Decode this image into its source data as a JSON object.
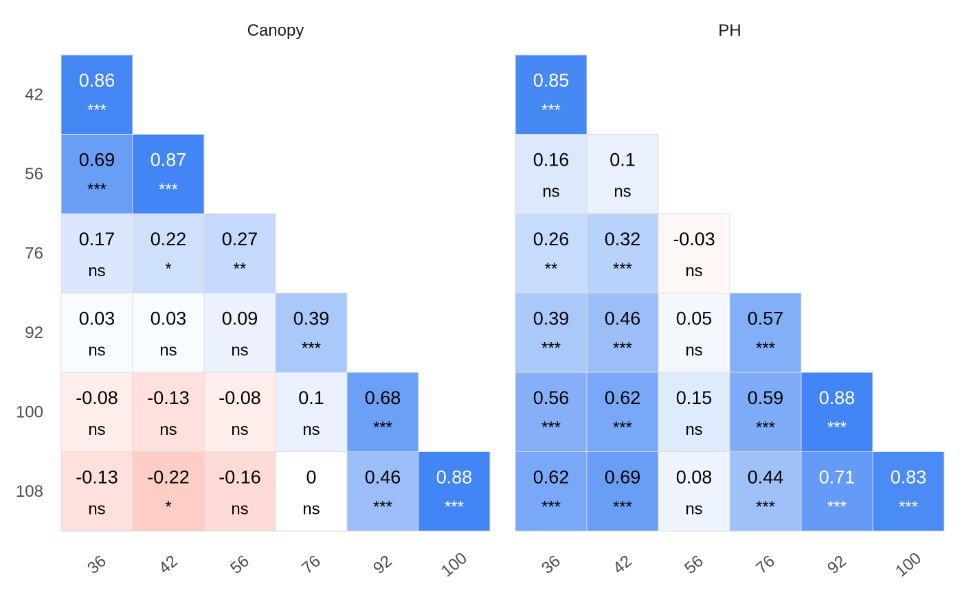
{
  "chart_data": {
    "type": "heatmap",
    "color_scale": {
      "negative": "#fc8d7e",
      "zero": "#ffffff",
      "positive": "#4285f4"
    },
    "x_categories": [
      "36",
      "42",
      "56",
      "76",
      "92",
      "100"
    ],
    "y_categories": [
      "42",
      "56",
      "76",
      "92",
      "100",
      "108"
    ],
    "panels": [
      {
        "title": "Canopy",
        "cells": [
          [
            {
              "v": 0.86,
              "s": "***"
            }
          ],
          [
            {
              "v": 0.69,
              "s": "***"
            },
            {
              "v": 0.87,
              "s": "***"
            }
          ],
          [
            {
              "v": 0.17,
              "s": "ns"
            },
            {
              "v": 0.22,
              "s": "*"
            },
            {
              "v": 0.27,
              "s": "**"
            }
          ],
          [
            {
              "v": 0.03,
              "s": "ns"
            },
            {
              "v": 0.03,
              "s": "ns"
            },
            {
              "v": 0.09,
              "s": "ns"
            },
            {
              "v": 0.39,
              "s": "***"
            }
          ],
          [
            {
              "v": -0.08,
              "s": "ns"
            },
            {
              "v": -0.13,
              "s": "ns"
            },
            {
              "v": -0.08,
              "s": "ns"
            },
            {
              "v": 0.1,
              "s": "ns"
            },
            {
              "v": 0.68,
              "s": "***"
            }
          ],
          [
            {
              "v": -0.13,
              "s": "ns"
            },
            {
              "v": -0.22,
              "s": "*"
            },
            {
              "v": -0.16,
              "s": "ns"
            },
            {
              "v": 0,
              "s": "ns"
            },
            {
              "v": 0.46,
              "s": "***"
            },
            {
              "v": 0.88,
              "s": "***"
            }
          ]
        ]
      },
      {
        "title": "PH",
        "cells": [
          [
            {
              "v": 0.85,
              "s": "***"
            }
          ],
          [
            {
              "v": 0.16,
              "s": "ns"
            },
            {
              "v": 0.1,
              "s": "ns"
            }
          ],
          [
            {
              "v": 0.26,
              "s": "**"
            },
            {
              "v": 0.32,
              "s": "***"
            },
            {
              "v": -0.03,
              "s": "ns"
            }
          ],
          [
            {
              "v": 0.39,
              "s": "***"
            },
            {
              "v": 0.46,
              "s": "***"
            },
            {
              "v": 0.05,
              "s": "ns"
            },
            {
              "v": 0.57,
              "s": "***"
            }
          ],
          [
            {
              "v": 0.56,
              "s": "***"
            },
            {
              "v": 0.62,
              "s": "***"
            },
            {
              "v": 0.15,
              "s": "ns"
            },
            {
              "v": 0.59,
              "s": "***"
            },
            {
              "v": 0.88,
              "s": "***"
            }
          ],
          [
            {
              "v": 0.62,
              "s": "***"
            },
            {
              "v": 0.69,
              "s": "***"
            },
            {
              "v": 0.08,
              "s": "ns"
            },
            {
              "v": 0.44,
              "s": "***"
            },
            {
              "v": 0.71,
              "s": "***"
            },
            {
              "v": 0.83,
              "s": "***"
            }
          ]
        ]
      }
    ]
  }
}
